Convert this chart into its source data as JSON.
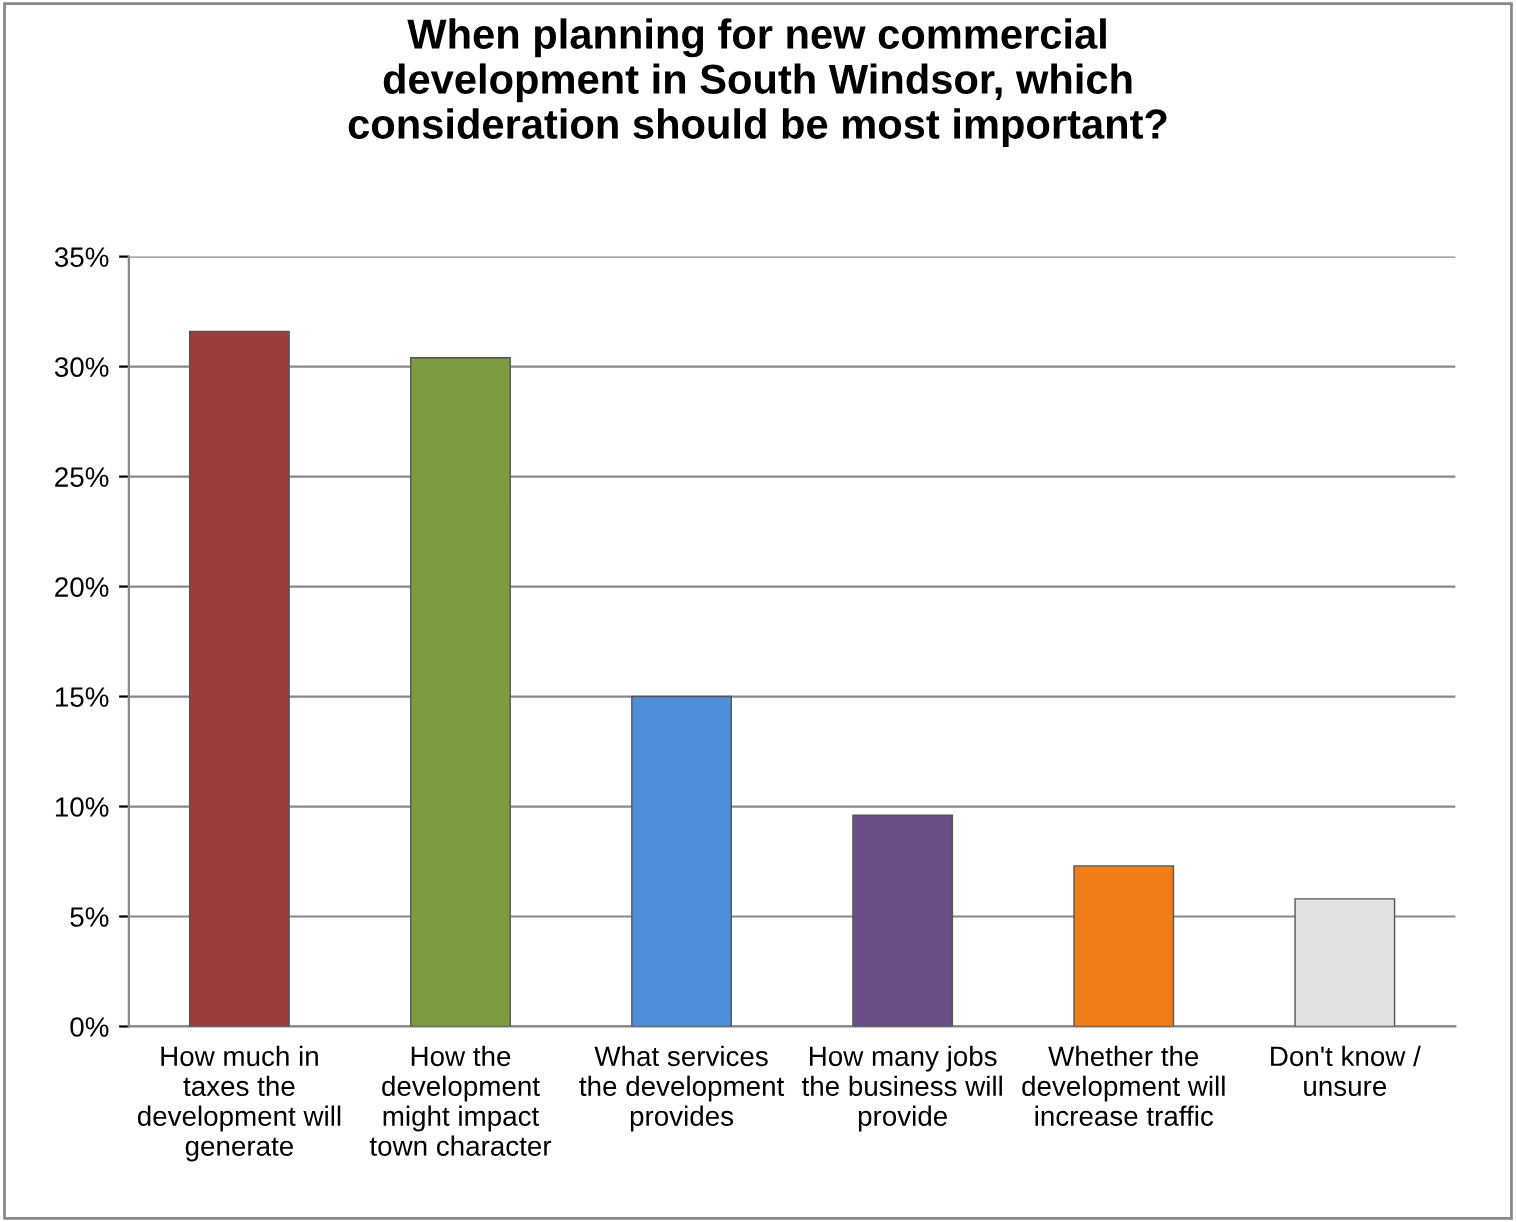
{
  "chart_data": {
    "type": "bar",
    "title": "When planning for new commercial development in South Windsor, which consideration should be most important?",
    "categories": [
      "How much in taxes the development will generate",
      "How the development might impact town character",
      "What services the development provides",
      "How many jobs the business will provide",
      "Whether the development will increase traffic",
      "Don't know / unsure"
    ],
    "values": [
      31.6,
      30.4,
      15.0,
      9.6,
      7.3,
      5.8
    ],
    "colors": [
      "#9b3d3b",
      "#7d9b40",
      "#4f8fda",
      "#6a4e88",
      "#f07d18",
      "#e2e2e2"
    ],
    "ylim": [
      0,
      35
    ],
    "yticks": [
      {
        "value": 0,
        "label": "0%"
      },
      {
        "value": 5,
        "label": "5%"
      },
      {
        "value": 10,
        "label": "10%"
      },
      {
        "value": 15,
        "label": "15%"
      },
      {
        "value": 20,
        "label": "20%"
      },
      {
        "value": 25,
        "label": "25%"
      },
      {
        "value": 30,
        "label": "30%"
      },
      {
        "value": 35,
        "label": "35%"
      }
    ],
    "grid": "y",
    "legend": false
  }
}
